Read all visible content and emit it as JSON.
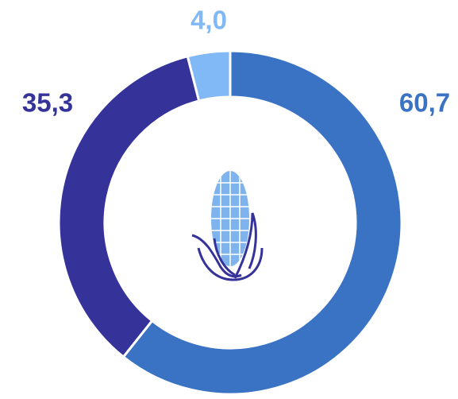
{
  "chart_data": {
    "type": "pie",
    "donut": true,
    "values": [
      60.7,
      35.3,
      4.0
    ],
    "value_labels": [
      "60,7",
      "35,3",
      "4,0"
    ],
    "colors": [
      "#3a72c4",
      "#35339a",
      "#80b9f5"
    ]
  }
}
